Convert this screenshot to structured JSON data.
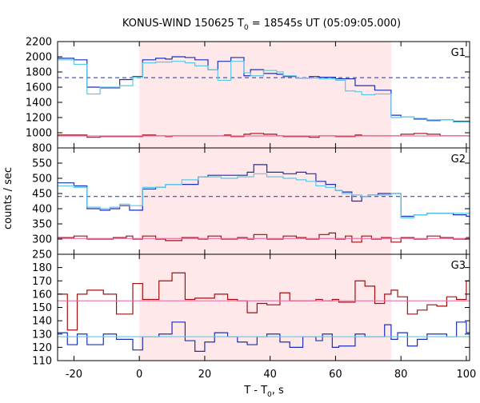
{
  "chart_data": {
    "type": "line",
    "title": "KONUS-WIND 150625 T",
    "title_sub": "0",
    "title_tail": " = 18545s UT (05:09:05.000)",
    "xlabel_main": "T - T",
    "xlabel_sub": "0",
    "xlabel_tail": ", s",
    "ylabel": "counts / sec",
    "xlim": [
      -25,
      101
    ],
    "x_ticks": [
      -20,
      0,
      20,
      40,
      60,
      80,
      100
    ],
    "highlight_interval": [
      0,
      77
    ],
    "colors": {
      "highlight": "#ffe8ea",
      "dark_blue": "#1a2fb8",
      "cyan": "#5cc8e6",
      "dark_red": "#a01010",
      "pink": "#f06fa8",
      "dashed_blue": "#1a2fb8"
    },
    "panels": [
      {
        "label": "G1",
        "ylim": [
          800,
          2200
        ],
        "yticks": [
          800,
          1000,
          1200,
          1400,
          1600,
          1800,
          2000,
          2200
        ],
        "dashed_background": 1725,
        "series": [
          {
            "role": "data",
            "color_key": "dark_blue",
            "x": [
              -26,
              -20,
              -16,
              -12,
              -6,
              -2,
              1,
              5,
              8,
              10,
              14,
              17,
              21,
              24,
              26,
              28,
              32,
              34,
              38,
              42,
              44,
              48,
              52,
              55,
              60,
              63,
              66,
              68,
              72,
              77,
              80,
              84,
              88,
              92,
              96,
              100
            ],
            "y": [
              1980,
              1960,
              1600,
              1590,
              1700,
              1740,
              1960,
              1980,
              1970,
              2000,
              1990,
              1960,
              1830,
              1940,
              1940,
              1990,
              1750,
              1830,
              1780,
              1770,
              1740,
              1720,
              1740,
              1730,
              1710,
              1710,
              1620,
              1620,
              1560,
              1230,
              1210,
              1180,
              1160,
              1170,
              1150,
              1150
            ]
          },
          {
            "role": "model",
            "color_key": "cyan",
            "x": [
              -26,
              -20,
              -16,
              -12,
              -6,
              -2,
              1,
              5,
              8,
              10,
              14,
              17,
              21,
              24,
              26,
              28,
              32,
              34,
              38,
              42,
              44,
              48,
              52,
              55,
              60,
              63,
              66,
              68,
              72,
              77,
              80,
              84,
              88,
              92,
              96,
              100
            ],
            "y": [
              1960,
              1900,
              1510,
              1600,
              1620,
              1730,
              1920,
              1930,
              1930,
              1940,
              1920,
              1880,
              1830,
              1690,
              1690,
              1940,
              1790,
              1750,
              1820,
              1800,
              1750,
              1720,
              1720,
              1710,
              1690,
              1550,
              1540,
              1500,
              1510,
              1200,
              1210,
              1190,
              1170,
              1170,
              1140,
              1140
            ]
          },
          {
            "role": "data",
            "color_key": "dark_red",
            "x": [
              -26,
              -20,
              -16,
              -12,
              -6,
              -2,
              1,
              5,
              8,
              10,
              14,
              17,
              21,
              24,
              26,
              28,
              32,
              34,
              38,
              42,
              44,
              48,
              52,
              55,
              60,
              63,
              66,
              68,
              72,
              77,
              80,
              84,
              88,
              92,
              96,
              100
            ],
            "y": [
              970,
              970,
              940,
              950,
              950,
              950,
              970,
              960,
              950,
              960,
              960,
              960,
              960,
              960,
              970,
              950,
              980,
              990,
              980,
              960,
              950,
              950,
              940,
              960,
              950,
              950,
              970,
              960,
              960,
              960,
              980,
              990,
              980,
              960,
              960,
              960
            ]
          },
          {
            "role": "fit",
            "color_key": "pink",
            "x": [
              -26,
              101
            ],
            "y": [
              958,
              958
            ]
          }
        ]
      },
      {
        "label": "G2",
        "ylim": [
          250,
          600
        ],
        "yticks": [
          250,
          300,
          350,
          400,
          450,
          500,
          550
        ],
        "dashed_background": 440,
        "series": [
          {
            "role": "data",
            "color_key": "dark_blue",
            "x": [
              -26,
              -20,
              -16,
              -12,
              -9,
              -6,
              -3,
              1,
              5,
              8,
              13,
              18,
              21,
              25,
              30,
              33,
              35,
              39,
              44,
              48,
              51,
              54,
              57,
              60,
              62,
              65,
              68,
              70,
              73,
              77,
              80,
              84,
              88,
              92,
              96,
              100
            ],
            "y": [
              485,
              475,
              400,
              395,
              400,
              410,
              395,
              465,
              470,
              480,
              480,
              505,
              510,
              510,
              510,
              520,
              545,
              520,
              515,
              520,
              515,
              490,
              480,
              460,
              455,
              425,
              440,
              445,
              450,
              450,
              375,
              380,
              385,
              385,
              380,
              375
            ]
          },
          {
            "role": "model",
            "color_key": "cyan",
            "x": [
              -26,
              -20,
              -16,
              -12,
              -9,
              -6,
              -3,
              1,
              5,
              8,
              13,
              18,
              21,
              25,
              30,
              33,
              35,
              39,
              44,
              48,
              51,
              54,
              57,
              60,
              62,
              65,
              68,
              70,
              73,
              77,
              80,
              84,
              88,
              92,
              96,
              100
            ],
            "y": [
              475,
              470,
              405,
              400,
              405,
              415,
              410,
              470,
              470,
              480,
              495,
              505,
              505,
              500,
              505,
              505,
              515,
              505,
              500,
              495,
              490,
              475,
              470,
              460,
              450,
              445,
              440,
              445,
              445,
              450,
              370,
              380,
              385,
              385,
              385,
              385
            ]
          },
          {
            "role": "data",
            "color_key": "dark_red",
            "x": [
              -26,
              -20,
              -16,
              -12,
              -8,
              -4,
              -2,
              1,
              5,
              8,
              13,
              18,
              21,
              25,
              30,
              33,
              35,
              39,
              44,
              48,
              51,
              55,
              58,
              60,
              63,
              65,
              68,
              71,
              74,
              77,
              80,
              84,
              88,
              92,
              96,
              100
            ],
            "y": [
              305,
              310,
              300,
              300,
              305,
              310,
              300,
              310,
              300,
              295,
              305,
              300,
              310,
              300,
              305,
              300,
              315,
              300,
              310,
              305,
              300,
              315,
              320,
              300,
              310,
              290,
              310,
              300,
              305,
              290,
              305,
              300,
              310,
              305,
              300,
              305
            ]
          },
          {
            "role": "fit",
            "color_key": "pink",
            "x": [
              -26,
              101
            ],
            "y": [
              302,
              302
            ]
          }
        ]
      },
      {
        "label": "G3",
        "ylim": [
          110,
          190
        ],
        "yticks": [
          110,
          120,
          130,
          140,
          150,
          160,
          170,
          180
        ],
        "series": [
          {
            "role": "data",
            "color_key": "dark_red",
            "x": [
              -26,
              -22,
              -19,
              -16,
              -11,
              -7,
              -2,
              1,
              6,
              10,
              14,
              17,
              20,
              23,
              27,
              30,
              33,
              36,
              39,
              43,
              46,
              50,
              54,
              56,
              59,
              61,
              66,
              69,
              72,
              75,
              77,
              79,
              82,
              85,
              88,
              91,
              94,
              97,
              100
            ],
            "y": [
              160,
              133,
              160,
              163,
              160,
              145,
              168,
              156,
              170,
              176,
              156,
              157,
              157,
              160,
              156,
              155,
              146,
              153,
              152,
              161,
              155,
              155,
              156,
              155,
              156,
              154,
              170,
              166,
              153,
              160,
              163,
              158,
              145,
              148,
              152,
              151,
              158,
              156,
              170
            ]
          },
          {
            "role": "data",
            "color_key": "dark_blue",
            "x": [
              -26,
              -22,
              -19,
              -16,
              -11,
              -7,
              -2,
              1,
              6,
              10,
              14,
              17,
              20,
              23,
              27,
              30,
              33,
              36,
              39,
              43,
              46,
              50,
              54,
              56,
              59,
              61,
              66,
              69,
              72,
              75,
              77,
              79,
              82,
              85,
              88,
              91,
              94,
              97,
              100
            ],
            "y": [
              131,
              122,
              130,
              122,
              130,
              126,
              118,
              128,
              130,
              139,
              125,
              117,
              124,
              131,
              128,
              124,
              122,
              128,
              130,
              124,
              120,
              128,
              125,
              130,
              120,
              121,
              130,
              128,
              128,
              137,
              126,
              131,
              121,
              126,
              130,
              130,
              128,
              139,
              131
            ]
          },
          {
            "role": "fit",
            "color_key": "pink",
            "x": [
              -26,
              101
            ],
            "y": [
              155,
              155
            ]
          },
          {
            "role": "fit",
            "color_key": "cyan",
            "x": [
              -26,
              101
            ],
            "y": [
              128,
              128
            ]
          }
        ]
      }
    ]
  }
}
